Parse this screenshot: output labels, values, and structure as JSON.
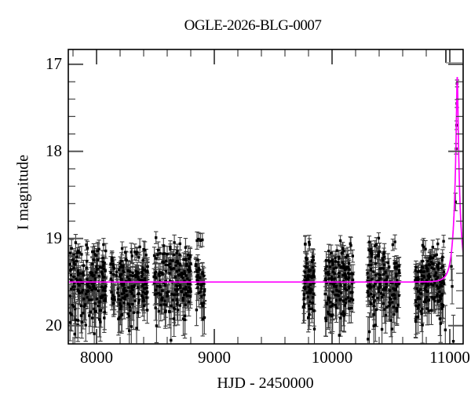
{
  "chart_data": {
    "type": "scatter",
    "title": "OGLE-2026-BLG-0007",
    "xlabel": "HJD - 2450000",
    "ylabel": "I magnitude",
    "x_range": [
      7760,
      11113
    ],
    "mag_range": [
      16.83,
      20.21
    ],
    "x_ticks": [
      8000,
      9000,
      10000,
      11000
    ],
    "x_minor_step": 200,
    "y_ticks": [
      17,
      18,
      19,
      20
    ],
    "y_minor_step": 0.2,
    "grid": false,
    "legend": "none",
    "marker": "square",
    "point_color": "#000000",
    "errorbar_color": "#3d3d3d",
    "baseline_mag": 19.5,
    "model": {
      "type": "paczynski",
      "I0": 19.5,
      "t0": 11063,
      "tE": 52,
      "u0": 0.115,
      "peak_mag": 17.15,
      "color": "#ff00ff"
    },
    "seed": 20260007,
    "seasons": [
      {
        "t_start": 7767,
        "t_end": 8078,
        "n": 170,
        "sigma": 0.24
      },
      {
        "t_start": 8120,
        "t_end": 8435,
        "n": 165,
        "sigma": 0.24
      },
      {
        "t_start": 8487,
        "t_end": 8800,
        "n": 170,
        "sigma": 0.24
      },
      {
        "t_start": 8840,
        "t_end": 8920,
        "n": 42,
        "sigma": 0.22
      },
      {
        "t_start": 9755,
        "t_end": 9850,
        "n": 70,
        "sigma": 0.24
      },
      {
        "t_start": 9940,
        "t_end": 10180,
        "n": 140,
        "sigma": 0.24
      },
      {
        "t_start": 10300,
        "t_end": 10572,
        "n": 145,
        "sigma": 0.24
      },
      {
        "t_start": 10705,
        "t_end": 10952,
        "n": 150,
        "sigma": 0.24
      }
    ],
    "mag_clip": [
      18.99,
      20.18
    ],
    "stray_points": [
      {
        "t": 10962,
        "mag": 20.05,
        "err": 0.28
      },
      {
        "t": 11013,
        "mag": 19.32,
        "err": 0.16
      },
      {
        "t": 11020,
        "mag": 19.55,
        "err": 0.2
      },
      {
        "t": 11030,
        "mag": 20.18,
        "err": 0.3
      }
    ],
    "peak_points": [
      {
        "t": 11048,
        "mag": 18.58,
        "err": 0.1
      },
      {
        "t": 11054,
        "mag": 17.97,
        "err": 0.06
      },
      {
        "t": 11057,
        "mag": 17.7,
        "err": 0.05
      },
      {
        "t": 11060,
        "mag": 17.45,
        "err": 0.045
      },
      {
        "t": 11062,
        "mag": 17.22,
        "err": 0.04
      }
    ]
  }
}
